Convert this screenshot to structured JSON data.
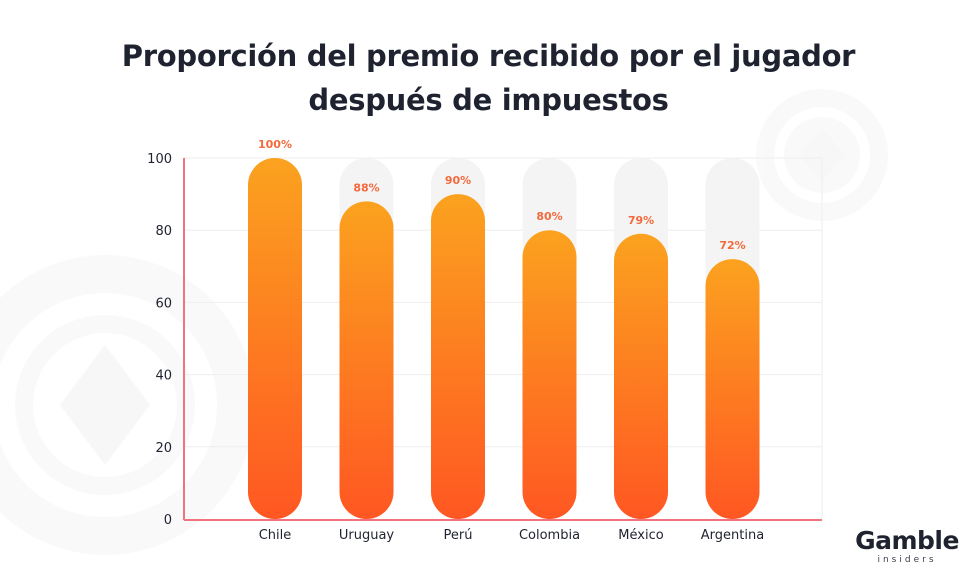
{
  "chart_data": {
    "type": "bar",
    "title_lines": [
      "Proporción del premio recibido por el jugador",
      "después de impuestos"
    ],
    "categories": [
      "Chile",
      "Uruguay",
      "Perú",
      "Colombia",
      "México",
      "Argentina"
    ],
    "values": [
      100,
      88,
      90,
      80,
      79,
      72
    ],
    "data_labels": [
      "100%",
      "88%",
      "90%",
      "80%",
      "79%",
      "72%"
    ],
    "ylim": [
      0,
      100
    ],
    "yticks": [
      0,
      20,
      40,
      60,
      80,
      100
    ],
    "grid": true,
    "colors": {
      "bar_top": "#fba21f",
      "bar_bottom": "#ff5722",
      "track": "#f4f4f4",
      "label": "#f26a3d",
      "axis": "#f2737f",
      "grid": "#eeeeee",
      "text": "#1f2330"
    }
  },
  "brand": {
    "name": "Gamble",
    "sub": "insiders"
  }
}
